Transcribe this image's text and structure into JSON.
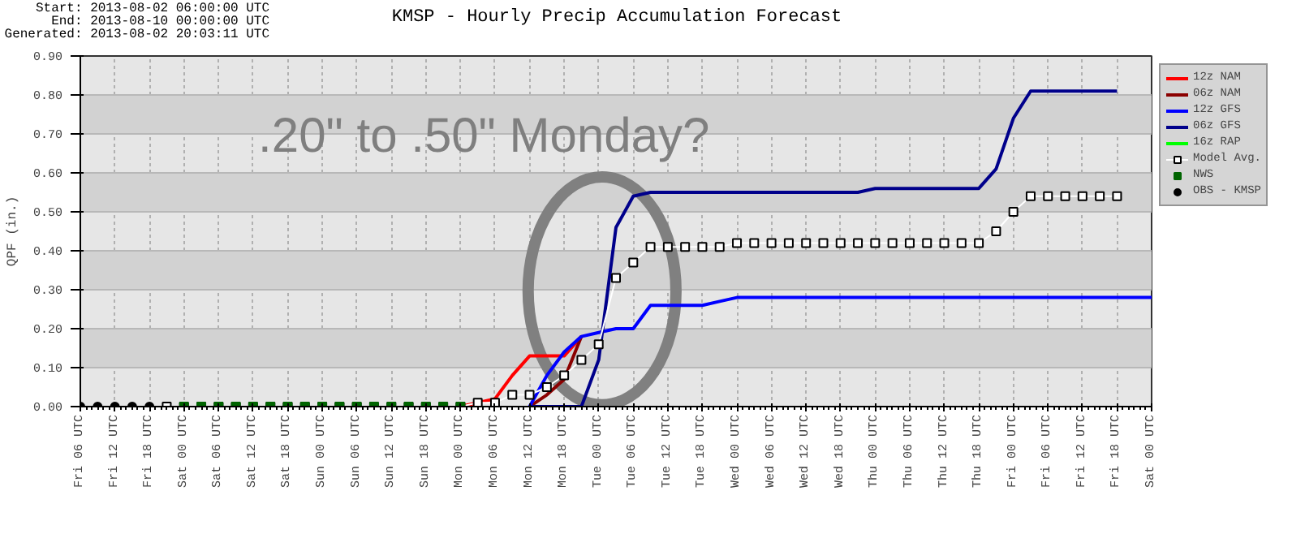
{
  "chart_data": {
    "type": "line",
    "title": "KMSP - Hourly Precip Accumulation Forecast",
    "ylabel": "QPF (in.)",
    "annotations": [
      "Start: 2013-08-02 06:00:00 UTC",
      "End: 2013-08-10 00:00:00 UTC",
      "Generated: 2013-08-02 20:03:11 UTC",
      ".20\" to .50\" Monday?"
    ],
    "categories": [
      "Fri 06 UTC",
      null,
      "Fri 12 UTC",
      null,
      "Fri 18 UTC",
      null,
      "Sat 00 UTC",
      null,
      "Sat 06 UTC",
      null,
      "Sat 12 UTC",
      null,
      "Sat 18 UTC",
      null,
      "Sun 00 UTC",
      null,
      "Sun 06 UTC",
      null,
      "Sun 12 UTC",
      null,
      "Sun 18 UTC",
      null,
      "Mon 00 UTC",
      null,
      "Mon 06 UTC",
      null,
      "Mon 12 UTC",
      null,
      "Mon 18 UTC",
      null,
      "Tue 00 UTC",
      null,
      "Tue 06 UTC",
      null,
      "Tue 12 UTC",
      null,
      "Tue 18 UTC",
      null,
      "Wed 00 UTC",
      null,
      "Wed 06 UTC",
      null,
      "Wed 12 UTC",
      null,
      "Wed 18 UTC",
      null,
      "Thu 00 UTC",
      null,
      "Thu 06 UTC",
      null,
      "Thu 12 UTC",
      null,
      "Thu 18 UTC",
      null,
      "Fri 00 UTC",
      null,
      "Fri 06 UTC",
      null,
      "Fri 12 UTC",
      null,
      "Fri 18 UTC",
      null,
      "Sat 00 UTC"
    ],
    "ylim": [
      0,
      0.9
    ],
    "yticks": [
      {
        "value": 0,
        "label": "0.00"
      },
      {
        "value": 0.1,
        "label": "0.10"
      },
      {
        "value": 0.2,
        "label": "0.20"
      },
      {
        "value": 0.3,
        "label": "0.30"
      },
      {
        "value": 0.4,
        "label": "0.40"
      },
      {
        "value": 0.5,
        "label": "0.50"
      },
      {
        "value": 0.6,
        "label": "0.60"
      },
      {
        "value": 0.7,
        "label": "0.70"
      },
      {
        "value": 0.8,
        "label": "0.80"
      },
      {
        "value": 0.9,
        "label": "0.90"
      }
    ],
    "grid": true,
    "legend": "right",
    "series": [
      {
        "name": "12z NAM",
        "color": "#ff0000",
        "marker": "none",
        "values": [
          null,
          null,
          null,
          null,
          null,
          null,
          null,
          null,
          null,
          null,
          null,
          null,
          null,
          null,
          null,
          null,
          null,
          null,
          null,
          null,
          null,
          null,
          0,
          0.01,
          0.02,
          0.08,
          0.13,
          0.13,
          0.13,
          0.18,
          null,
          null,
          null,
          null,
          null,
          null,
          null,
          null,
          null,
          null,
          null,
          null,
          null,
          null,
          null,
          null,
          null,
          null,
          null,
          null,
          null,
          null,
          null,
          null,
          null,
          null,
          null,
          null,
          null,
          null,
          null,
          null,
          null
        ]
      },
      {
        "name": "06z NAM",
        "color": "#8b0000",
        "marker": "none",
        "values": [
          null,
          null,
          null,
          null,
          null,
          null,
          null,
          null,
          null,
          null,
          null,
          null,
          null,
          null,
          null,
          null,
          null,
          null,
          null,
          null,
          null,
          null,
          null,
          null,
          null,
          null,
          0,
          0.03,
          0.07,
          0.18,
          null,
          null,
          null,
          null,
          null,
          null,
          null,
          null,
          null,
          null,
          null,
          null,
          null,
          null,
          null,
          null,
          null,
          null,
          null,
          null,
          null,
          null,
          null,
          null,
          null,
          null,
          null,
          null,
          null,
          null,
          null,
          null,
          null
        ]
      },
      {
        "name": "12z GFS",
        "color": "#0000ff",
        "marker": "none",
        "values": [
          null,
          null,
          null,
          null,
          null,
          null,
          null,
          null,
          null,
          null,
          null,
          null,
          null,
          null,
          null,
          null,
          null,
          null,
          null,
          null,
          null,
          null,
          null,
          null,
          null,
          null,
          0,
          0.08,
          0.14,
          0.18,
          0.19,
          0.2,
          0.2,
          0.26,
          0.26,
          0.26,
          0.26,
          0.27,
          0.28,
          0.28,
          0.28,
          0.28,
          0.28,
          0.28,
          0.28,
          0.28,
          0.28,
          0.28,
          0.28,
          0.28,
          0.28,
          0.28,
          0.28,
          0.28,
          0.28,
          0.28,
          0.28,
          0.28,
          0.28,
          0.28,
          0.28,
          0.28,
          0.28
        ]
      },
      {
        "name": "06z GFS",
        "color": "#00008b",
        "marker": "none",
        "values": [
          null,
          null,
          null,
          null,
          null,
          null,
          null,
          null,
          null,
          null,
          null,
          null,
          null,
          null,
          null,
          null,
          null,
          null,
          null,
          null,
          null,
          null,
          null,
          null,
          null,
          null,
          0,
          0,
          0,
          0,
          0.12,
          0.46,
          0.54,
          0.55,
          0.55,
          0.55,
          0.55,
          0.55,
          0.55,
          0.55,
          0.55,
          0.55,
          0.55,
          0.55,
          0.55,
          0.55,
          0.56,
          0.56,
          0.56,
          0.56,
          0.56,
          0.56,
          0.56,
          0.61,
          0.74,
          0.81,
          0.81,
          0.81,
          0.81,
          0.81,
          0.81,
          null,
          null
        ]
      },
      {
        "name": "16z RAP",
        "color": "#00ff00",
        "values": [
          null,
          null,
          null,
          null,
          null,
          null,
          null,
          null,
          null,
          null,
          null,
          null,
          null,
          null,
          null,
          null,
          null,
          null,
          null,
          null,
          null,
          null,
          null,
          null,
          null,
          null,
          null,
          null,
          null,
          null,
          null,
          null,
          null,
          null,
          null,
          null,
          null,
          null,
          null,
          null,
          null,
          null,
          null,
          null,
          null,
          null,
          null,
          null,
          null,
          null,
          null,
          null,
          null,
          null,
          null,
          null,
          null,
          null,
          null,
          null,
          null,
          null,
          null
        ]
      },
      {
        "name": "Model Avg.",
        "color": "#ffffff",
        "marker": "square",
        "values": [
          null,
          null,
          null,
          null,
          null,
          0,
          0,
          0,
          0,
          0,
          0,
          0,
          0,
          0,
          0,
          0,
          0,
          0,
          0,
          0,
          0,
          0,
          0,
          0.01,
          0.01,
          0.03,
          0.03,
          0.05,
          0.08,
          0.12,
          0.16,
          0.33,
          0.37,
          0.41,
          0.41,
          0.41,
          0.41,
          0.41,
          0.42,
          0.42,
          0.42,
          0.42,
          0.42,
          0.42,
          0.42,
          0.42,
          0.42,
          0.42,
          0.42,
          0.42,
          0.42,
          0.42,
          0.42,
          0.45,
          0.5,
          0.54,
          0.54,
          0.54,
          0.54,
          0.54,
          0.54,
          null,
          null
        ]
      },
      {
        "name": "NWS",
        "type": "scatter",
        "color": "#006400",
        "marker": "square",
        "values": [
          null,
          null,
          null,
          null,
          null,
          null,
          0,
          0,
          0,
          0,
          0,
          0,
          0,
          0,
          0,
          0,
          0,
          0,
          0,
          0,
          0,
          0,
          0,
          null,
          null,
          null,
          null,
          null,
          null,
          null,
          null,
          null,
          null,
          null,
          null,
          null,
          null,
          null,
          null,
          null,
          null,
          null,
          null,
          null,
          null,
          null,
          null,
          null,
          null,
          null,
          null,
          null,
          null,
          null,
          null,
          null,
          null,
          null,
          null,
          null,
          null,
          null,
          null
        ]
      },
      {
        "name": "OBS - KMSP",
        "type": "scatter",
        "color": "#000000",
        "marker": "circle",
        "values": [
          0,
          0,
          0,
          0,
          0,
          null,
          null,
          null,
          null,
          null,
          null,
          null,
          null,
          null,
          null,
          null,
          null,
          null,
          null,
          null,
          null,
          null,
          null,
          null,
          null,
          null,
          null,
          null,
          null,
          null,
          null,
          null,
          null,
          null,
          null,
          null,
          null,
          null,
          null,
          null,
          null,
          null,
          null,
          null,
          null,
          null,
          null,
          null,
          null,
          null,
          null,
          null,
          null,
          null,
          null,
          null,
          null,
          null,
          null,
          null,
          null,
          null,
          null
        ]
      }
    ]
  }
}
